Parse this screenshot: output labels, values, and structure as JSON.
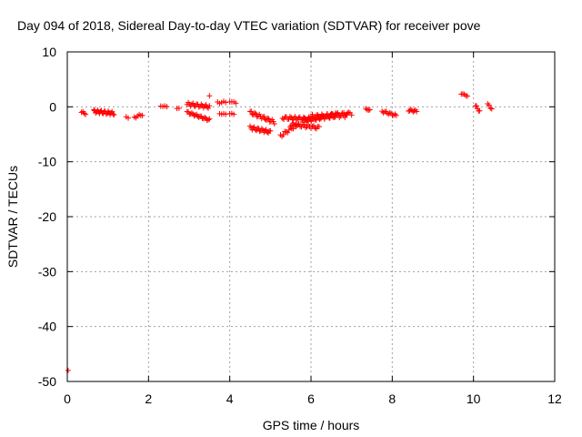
{
  "chart_data": {
    "type": "scatter",
    "title": "Day 094 of 2018, Sidereal Day-to-day VTEC variation (SDTVAR) for receiver pove",
    "xlabel": "GPS time / hours",
    "ylabel": "SDTVAR / TECUs",
    "xlim": [
      0,
      12
    ],
    "ylim": [
      -50,
      10
    ],
    "x_ticks": [
      0,
      2,
      4,
      6,
      8,
      10,
      12
    ],
    "y_ticks": [
      -50,
      -40,
      -30,
      -20,
      -10,
      0,
      10
    ],
    "grid": true,
    "marker": "+",
    "marker_color": "#ff0000",
    "grid_color": "#a0a0a0",
    "clusters": [
      {
        "x_start": 0.35,
        "x_end": 0.45,
        "y_start": -1.0,
        "y_end": -1.2,
        "amp": 0.2,
        "n": 4
      },
      {
        "x_start": 0.65,
        "x_end": 1.15,
        "y_start": -0.8,
        "y_end": -1.2,
        "amp": 0.3,
        "n": 22
      },
      {
        "x_start": 1.45,
        "x_end": 1.5,
        "y_start": -1.9,
        "y_end": -2.0,
        "amp": 0.1,
        "n": 2
      },
      {
        "x_start": 1.65,
        "x_end": 1.85,
        "y_start": -1.9,
        "y_end": -1.4,
        "amp": 0.2,
        "n": 6
      },
      {
        "x_start": 2.3,
        "x_end": 2.45,
        "y_start": 0.2,
        "y_end": 0.0,
        "amp": 0.1,
        "n": 4
      },
      {
        "x_start": 2.7,
        "x_end": 2.75,
        "y_start": -0.2,
        "y_end": -0.3,
        "amp": 0.1,
        "n": 2
      },
      {
        "x_start": 2.95,
        "x_end": 3.5,
        "y_start": 0.5,
        "y_end": 0.0,
        "amp": 0.3,
        "n": 20
      },
      {
        "x_start": 2.95,
        "x_end": 3.5,
        "y_start": -1.0,
        "y_end": -2.4,
        "amp": 0.2,
        "n": 20
      },
      {
        "x_start": 3.5,
        "x_end": 3.5,
        "y_start": 2.0,
        "y_end": 2.0,
        "amp": 0.0,
        "n": 1
      },
      {
        "x_start": 3.7,
        "x_end": 3.9,
        "y_start": 0.8,
        "y_end": 0.8,
        "amp": 0.2,
        "n": 5
      },
      {
        "x_start": 3.75,
        "x_end": 3.9,
        "y_start": -1.2,
        "y_end": -1.4,
        "amp": 0.1,
        "n": 4
      },
      {
        "x_start": 4.0,
        "x_end": 4.15,
        "y_start": 1.0,
        "y_end": 0.7,
        "amp": 0.1,
        "n": 4
      },
      {
        "x_start": 4.0,
        "x_end": 4.1,
        "y_start": -1.2,
        "y_end": -1.4,
        "amp": 0.1,
        "n": 3
      },
      {
        "x_start": 4.5,
        "x_end": 5.1,
        "y_start": -1.0,
        "y_end": -2.8,
        "amp": 0.3,
        "n": 22
      },
      {
        "x_start": 4.5,
        "x_end": 5.0,
        "y_start": -3.8,
        "y_end": -4.6,
        "amp": 0.3,
        "n": 20
      },
      {
        "x_start": 5.25,
        "x_end": 5.7,
        "y_start": -5.3,
        "y_end": -3.0,
        "amp": 0.3,
        "n": 14
      },
      {
        "x_start": 5.3,
        "x_end": 6.0,
        "y_start": -2.0,
        "y_end": -2.2,
        "amp": 0.3,
        "n": 24
      },
      {
        "x_start": 5.5,
        "x_end": 6.2,
        "y_start": -3.2,
        "y_end": -3.8,
        "amp": 0.3,
        "n": 22
      },
      {
        "x_start": 5.8,
        "x_end": 6.6,
        "y_start": -2.5,
        "y_end": -1.5,
        "amp": 0.4,
        "n": 28
      },
      {
        "x_start": 6.0,
        "x_end": 6.9,
        "y_start": -1.8,
        "y_end": -1.5,
        "amp": 0.4,
        "n": 28
      },
      {
        "x_start": 6.5,
        "x_end": 7.0,
        "y_start": -1.5,
        "y_end": -1.2,
        "amp": 0.3,
        "n": 14
      },
      {
        "x_start": 7.35,
        "x_end": 7.45,
        "y_start": -0.4,
        "y_end": -0.6,
        "amp": 0.1,
        "n": 4
      },
      {
        "x_start": 7.75,
        "x_end": 8.1,
        "y_start": -0.8,
        "y_end": -1.6,
        "amp": 0.2,
        "n": 12
      },
      {
        "x_start": 8.4,
        "x_end": 8.6,
        "y_start": -0.6,
        "y_end": -0.8,
        "amp": 0.2,
        "n": 8
      },
      {
        "x_start": 9.7,
        "x_end": 9.85,
        "y_start": 2.4,
        "y_end": 2.0,
        "amp": 0.1,
        "n": 5
      },
      {
        "x_start": 10.05,
        "x_end": 10.15,
        "y_start": 0.2,
        "y_end": -0.8,
        "amp": 0.2,
        "n": 5
      },
      {
        "x_start": 10.35,
        "x_end": 10.45,
        "y_start": 0.4,
        "y_end": -0.3,
        "amp": 0.2,
        "n": 4
      },
      {
        "x_start": 0.02,
        "x_end": 0.02,
        "y_start": -48.0,
        "y_end": -48.0,
        "amp": 0.0,
        "n": 1
      }
    ]
  }
}
